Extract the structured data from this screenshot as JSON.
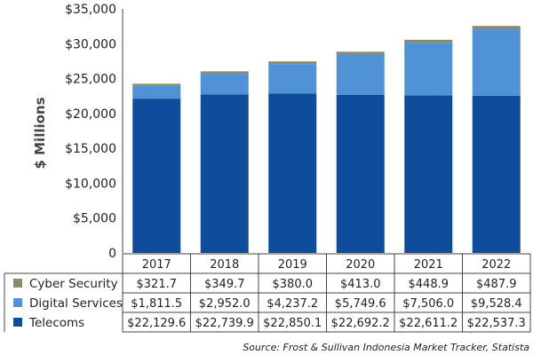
{
  "chart_data": {
    "type": "bar",
    "stacked": true,
    "title": "",
    "xlabel": "",
    "ylabel": "$ Millions",
    "ylim": [
      0,
      35000
    ],
    "yticks": [
      "0",
      "$5,000",
      "$10,000",
      "$15,000",
      "$20,000",
      "$25,000",
      "$30,000",
      "$35,000"
    ],
    "categories": [
      "2017",
      "2018",
      "2019",
      "2020",
      "2021",
      "2022"
    ],
    "series": [
      {
        "name": "Telecoms",
        "color": "#0e4c9c",
        "values": [
          22129.6,
          22739.9,
          22850.1,
          22692.2,
          22611.2,
          22537.3
        ],
        "labels": [
          "$22,129.6",
          "$22,739.9",
          "$22,850.1",
          "$22,692.2",
          "$22,611.2",
          "$22,537.3"
        ]
      },
      {
        "name": "Digital Services",
        "color": "#4f92d6",
        "values": [
          1811.5,
          2952.0,
          4237.2,
          5749.6,
          7506.0,
          9528.4
        ],
        "labels": [
          "$1,811.5",
          "$2,952.0",
          "$4,237.2",
          "$5,749.6",
          "$7,506.0",
          "$9,528.4"
        ]
      },
      {
        "name": "Cyber Security",
        "color": "#8b8a6c",
        "values": [
          321.7,
          349.7,
          380.0,
          413.0,
          448.9,
          487.9
        ],
        "labels": [
          "$321.7",
          "$349.7",
          "$380.0",
          "$413.0",
          "$448.9",
          "$487.9"
        ]
      }
    ],
    "source": "Source: Frost & Sullivan Indonesia Market Tracker, Statista"
  }
}
